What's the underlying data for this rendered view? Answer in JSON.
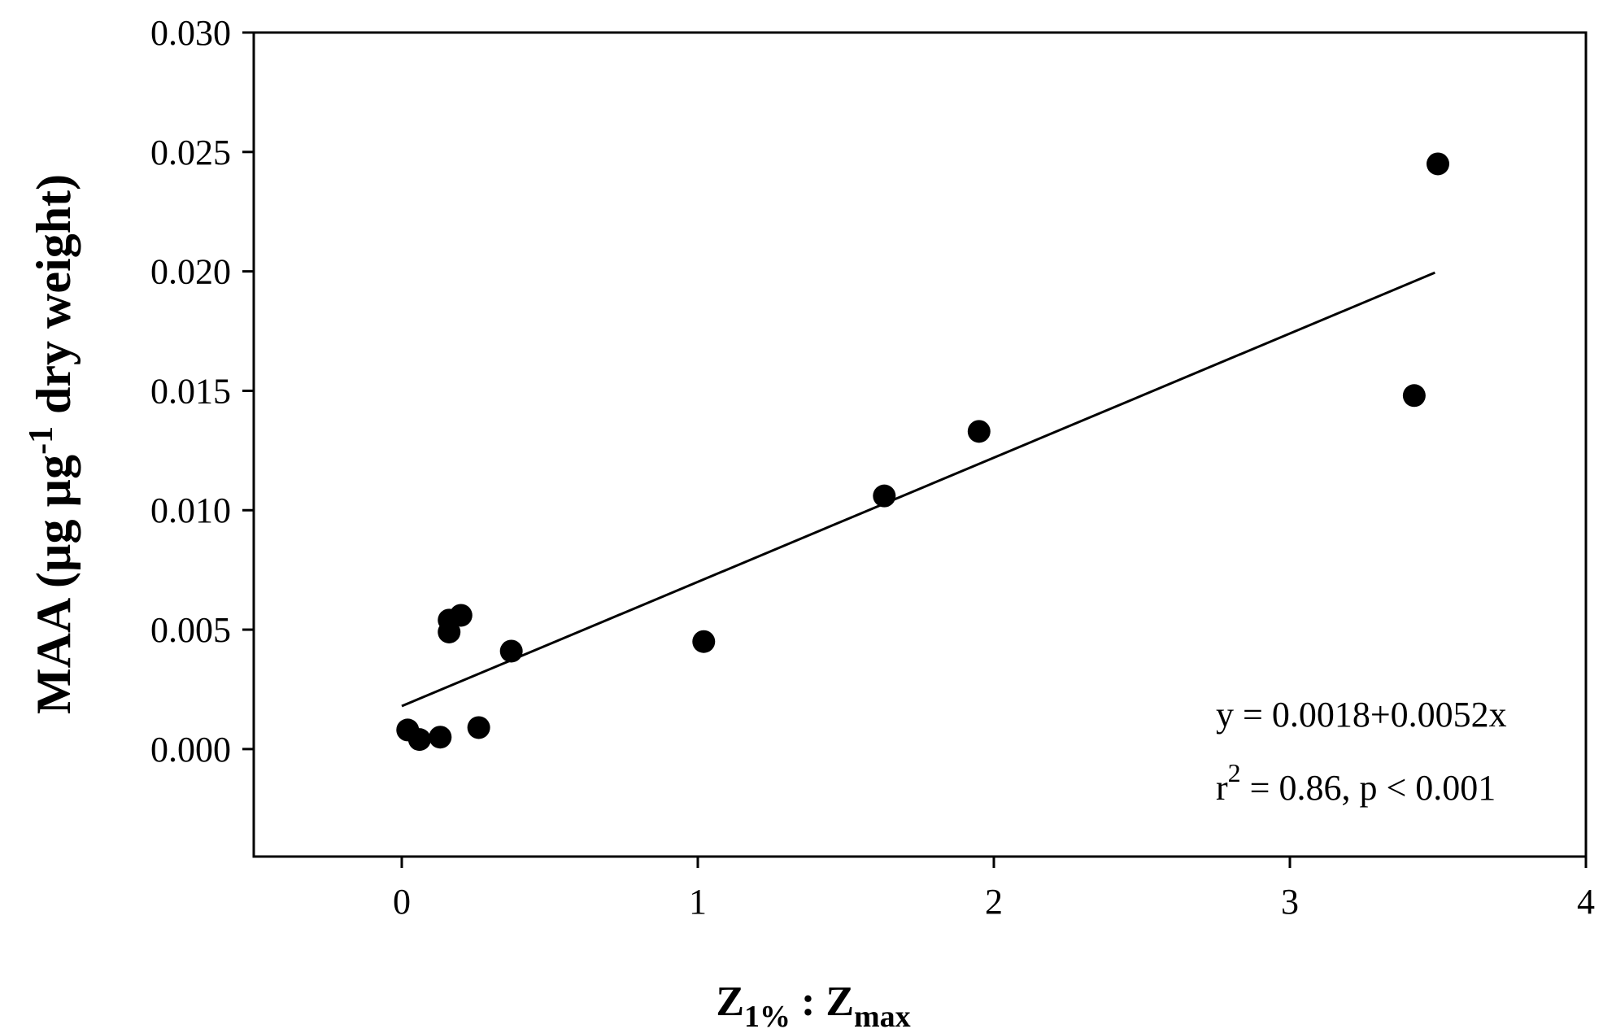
{
  "chart_data": {
    "type": "scatter",
    "xlim": [
      -0.5,
      4
    ],
    "ylim": [
      -0.0045,
      0.03
    ],
    "x_ticks": [
      "0",
      "1",
      "2",
      "3",
      "4"
    ],
    "y_ticks": [
      "0.000",
      "0.005",
      "0.010",
      "0.015",
      "0.020",
      "0.025",
      "0.030"
    ],
    "xlabel": {
      "base": "Z",
      "sub1": "1%",
      "mid": " : Z",
      "sub2": "max"
    },
    "ylabel": {
      "main": "MAA (µg µg",
      "sup": "-1",
      "tail": " dry weight)"
    },
    "points": [
      {
        "x": 0.02,
        "y": 0.0008
      },
      {
        "x": 0.06,
        "y": 0.0004
      },
      {
        "x": 0.13,
        "y": 0.0005
      },
      {
        "x": 0.16,
        "y": 0.0049
      },
      {
        "x": 0.16,
        "y": 0.0054
      },
      {
        "x": 0.2,
        "y": 0.0056
      },
      {
        "x": 0.26,
        "y": 0.0009
      },
      {
        "x": 0.37,
        "y": 0.0041
      },
      {
        "x": 1.02,
        "y": 0.0045
      },
      {
        "x": 1.63,
        "y": 0.0106
      },
      {
        "x": 1.95,
        "y": 0.0133
      },
      {
        "x": 3.42,
        "y": 0.0148
      },
      {
        "x": 3.5,
        "y": 0.0245
      }
    ],
    "regression": {
      "intercept": 0.0018,
      "slope": 0.0052,
      "x_range": [
        0.0,
        3.49
      ]
    },
    "annotation": {
      "equation": "y = 0.0018+0.0052x",
      "r_label": "r",
      "r_sup": "2",
      "r_rest": " = 0.86, p < 0.001"
    },
    "colors": {
      "marker": "#000000",
      "line": "#000000",
      "axis": "#000000"
    }
  }
}
